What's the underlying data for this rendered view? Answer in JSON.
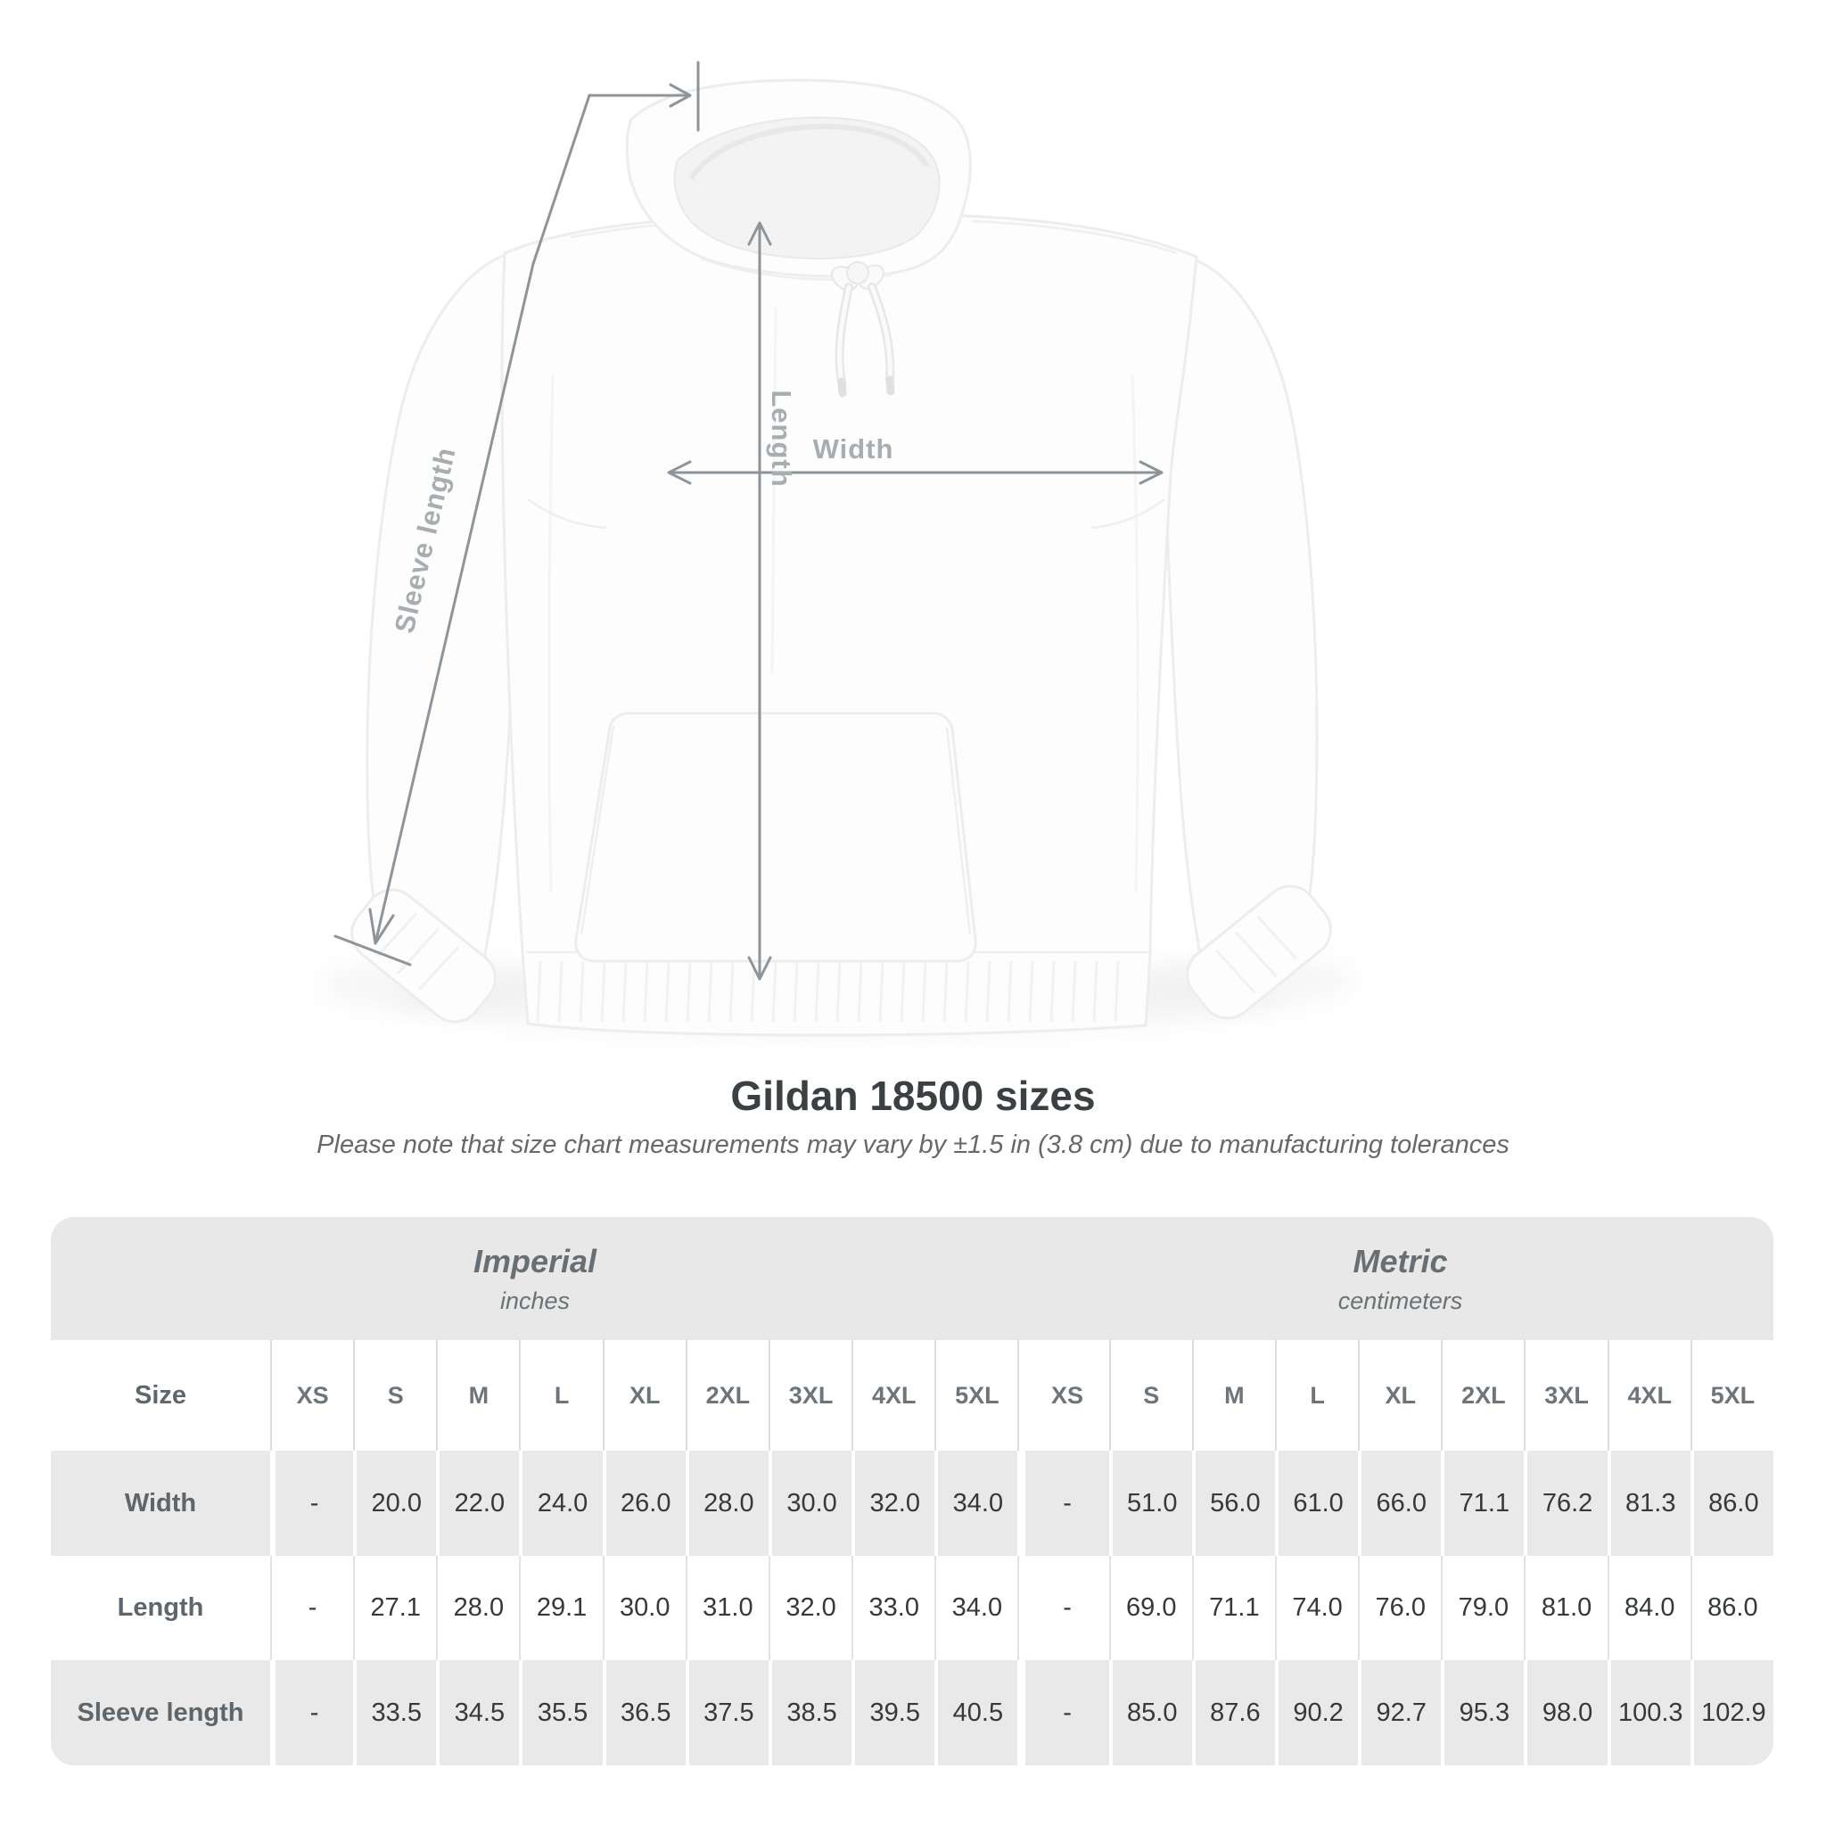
{
  "diagram": {
    "labels": {
      "sleeve_length": "Sleeve length",
      "length": "Length",
      "width": "Width"
    }
  },
  "title": "Gildan 18500 sizes",
  "note": "Please note that size chart measurements may vary by ±1.5 in (3.8 cm) due to manufacturing tolerances",
  "table": {
    "unit_groups": [
      {
        "label": "Imperial",
        "sublabel": "inches"
      },
      {
        "label": "Metric",
        "sublabel": "centimeters"
      }
    ],
    "size_column_header": "Size",
    "sizes": [
      "XS",
      "S",
      "M",
      "L",
      "XL",
      "2XL",
      "3XL",
      "4XL",
      "5XL"
    ],
    "rows": [
      {
        "label": "Width",
        "imperial": [
          "-",
          "20.0",
          "22.0",
          "24.0",
          "26.0",
          "28.0",
          "30.0",
          "32.0",
          "34.0"
        ],
        "metric": [
          "-",
          "51.0",
          "56.0",
          "61.0",
          "66.0",
          "71.1",
          "76.2",
          "81.3",
          "86.0"
        ]
      },
      {
        "label": "Length",
        "imperial": [
          "-",
          "27.1",
          "28.0",
          "29.1",
          "30.0",
          "31.0",
          "32.0",
          "33.0",
          "34.0"
        ],
        "metric": [
          "-",
          "69.0",
          "71.1",
          "74.0",
          "76.0",
          "79.0",
          "81.0",
          "84.0",
          "86.0"
        ]
      },
      {
        "label": "Sleeve length",
        "imperial": [
          "-",
          "33.5",
          "34.5",
          "35.5",
          "36.5",
          "37.5",
          "38.5",
          "39.5",
          "40.5"
        ],
        "metric": [
          "-",
          "85.0",
          "87.6",
          "90.2",
          "92.7",
          "95.3",
          "98.0",
          "100.3",
          "102.9"
        ]
      }
    ]
  },
  "colors": {
    "dimension_line": "#8e959a",
    "dimension_label": "#a8adb0",
    "band_background": "#e8e8e8",
    "row_gray": "#e9e9e9",
    "title_text": "#3b4043"
  }
}
